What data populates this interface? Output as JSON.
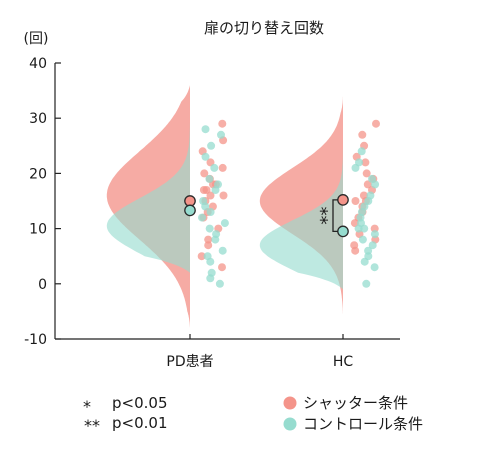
{
  "chart_data": {
    "type": "half-violin with jitter scatter",
    "title": "扉の切り替え回数",
    "ylabel": "(回)",
    "ylim": [
      -10,
      40
    ],
    "yticks": [
      -10,
      0,
      10,
      20,
      30,
      40
    ],
    "categories": [
      "PD患者",
      "HC"
    ],
    "colors": {
      "shutter": "#f4948a",
      "control": "#96dccf",
      "overlap": "#c9c9bd"
    },
    "series": [
      {
        "name": "シャッター条件",
        "key": "shutter",
        "means": [
          15,
          15.2
        ]
      },
      {
        "name": "コントロール条件",
        "key": "control",
        "means": [
          13.3,
          9.5
        ]
      }
    ],
    "density": [
      {
        "category": "PD患者",
        "shutter": {
          "min": -8,
          "max": 36,
          "peaks": [
            [
              16,
              8
            ]
          ],
          "scale": 26
        },
        "control": {
          "min": 2,
          "max": 31,
          "peaks": [
            [
              10.5,
              5
            ]
          ],
          "scale": 26
        }
      },
      {
        "category": "HC",
        "shutter": {
          "min": -6,
          "max": 34,
          "peaks": [
            [
              15,
              6
            ]
          ],
          "scale": 26
        },
        "control": {
          "min": -1,
          "max": 30,
          "peaks": [
            [
              7,
              4.5
            ]
          ],
          "scale": 26
        }
      }
    ],
    "points": [
      {
        "category": "PD患者",
        "shutter": [
          29,
          26,
          24,
          22,
          21,
          20,
          19,
          18,
          18,
          17,
          17,
          16,
          16,
          15,
          14,
          13,
          12,
          10,
          8,
          7,
          5,
          3
        ],
        "control": [
          28,
          27,
          25,
          23,
          21,
          19,
          18,
          17,
          15,
          14,
          13,
          12,
          11,
          10,
          9,
          8,
          6,
          5,
          4,
          2,
          1,
          0
        ]
      },
      {
        "category": "HC",
        "shutter": [
          29,
          27,
          25,
          23,
          22,
          20,
          19,
          18,
          17,
          16,
          15,
          15,
          14,
          13,
          12,
          11,
          10,
          9,
          8,
          7,
          6
        ],
        "control": [
          24,
          22,
          21,
          19,
          18,
          16,
          15,
          14,
          13,
          12,
          11,
          10,
          10,
          9,
          8,
          7,
          6,
          5,
          4,
          3,
          0
        ]
      }
    ],
    "significance": {
      "category": "HC",
      "label": "**"
    },
    "legend": {
      "position": "bottom",
      "items": [
        "シャッター条件",
        "コントロール条件"
      ],
      "notes": [
        {
          "symbol": "*",
          "text": "p<0.05"
        },
        {
          "symbol": "**",
          "text": "p<0.01"
        }
      ]
    }
  }
}
